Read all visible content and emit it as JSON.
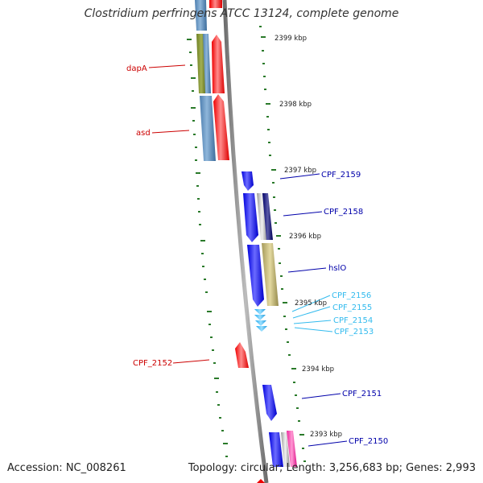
{
  "header": {
    "title": "Clostridium perfringens ATCC 13124, complete genome"
  },
  "footer": {
    "accession": "Accession: NC_008261",
    "summary": "Topology: circular; Length: 3,256,683 bp; Genes: 2,993"
  },
  "kbp_labels": [
    "2399 kbp",
    "2398 kbp",
    "2397 kbp",
    "2396 kbp",
    "2395 kbp",
    "2394 kbp",
    "2393 kbp"
  ],
  "gene_labels": [
    {
      "text": "dapA",
      "color": "#cc0000"
    },
    {
      "text": "asd",
      "color": "#cc0000"
    },
    {
      "text": "CPF_2159",
      "color": "#0000aa"
    },
    {
      "text": "CPF_2158",
      "color": "#0000aa"
    },
    {
      "text": "hslO",
      "color": "#0000aa"
    },
    {
      "text": "CPF_2156",
      "color": "#33bbee"
    },
    {
      "text": "CPF_2155",
      "color": "#33bbee"
    },
    {
      "text": "CPF_2154",
      "color": "#33bbee"
    },
    {
      "text": "CPF_2153",
      "color": "#33bbee"
    },
    {
      "text": "CPF_2152",
      "color": "#cc0000"
    },
    {
      "text": "CPF_2151",
      "color": "#0000aa"
    },
    {
      "text": "CPF_2150",
      "color": "#0000aa"
    }
  ],
  "colors": {
    "backbone": "#888888",
    "tick": "#2a7a2a",
    "reverse_cds": "#ee0000",
    "forward_cds": "#0000ee",
    "small_cds": "#33bbee"
  }
}
